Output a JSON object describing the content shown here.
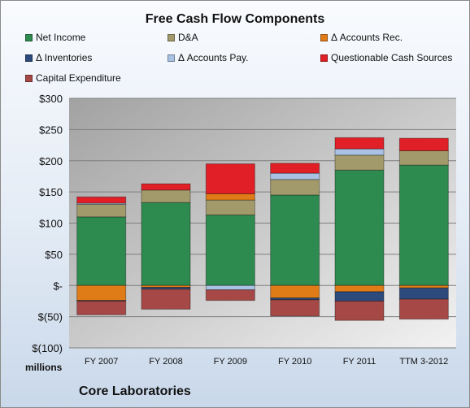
{
  "chart_data": {
    "type": "bar",
    "stacked": true,
    "title": "Free Cash Flow Components",
    "units_label": "millions",
    "company": "Core Laboratories",
    "categories": [
      "FY 2007",
      "FY 2008",
      "FY 2009",
      "FY 2010",
      "FY 2011",
      "TTM 3-2012"
    ],
    "ylim": [
      -100,
      300
    ],
    "yticks": [
      300,
      250,
      200,
      150,
      100,
      50,
      0,
      -50,
      -100
    ],
    "ytick_labels": [
      "$300",
      "$250",
      "$200",
      "$150",
      "$100",
      "$50",
      "$-",
      "$(50)",
      "$(100)"
    ],
    "grid": true,
    "legend_position": "top",
    "series": [
      {
        "name": "Net Income",
        "color": "#2e8b50",
        "values": [
          110,
          133,
          113,
          145,
          185,
          193
        ]
      },
      {
        "name": "D&A",
        "color": "#a39a6c",
        "values": [
          20,
          20,
          24,
          25,
          24,
          23
        ]
      },
      {
        "name": "Δ Accounts Rec.",
        "color": "#e07c18",
        "values": [
          -24,
          -3,
          10,
          -20,
          -10,
          -4
        ]
      },
      {
        "name": "Δ Inventories",
        "color": "#2c4a7c",
        "values": [
          -1,
          -3,
          0,
          -3,
          -15,
          -18
        ]
      },
      {
        "name": "Δ Accounts Pay.",
        "color": "#a9c2e4",
        "values": [
          2,
          0,
          -7,
          10,
          10,
          0
        ]
      },
      {
        "name": "Questionable Cash Sources",
        "color": "#e01f26",
        "values": [
          10,
          10,
          48,
          16,
          18,
          20
        ]
      },
      {
        "name": "Capital Expenditure",
        "color": "#a54846",
        "values": [
          -22,
          -32,
          -17,
          -26,
          -31,
          -32
        ]
      }
    ]
  }
}
